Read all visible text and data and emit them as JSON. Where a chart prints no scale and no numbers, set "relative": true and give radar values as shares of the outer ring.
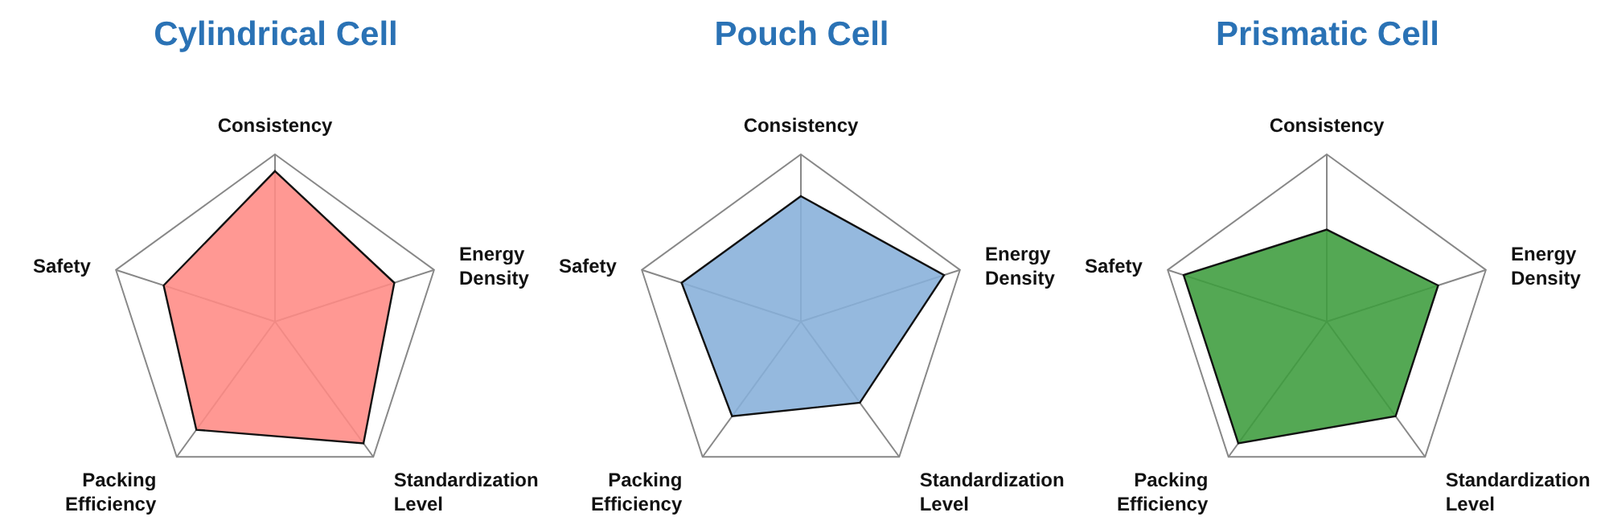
{
  "chart_data": [
    {
      "type": "radar",
      "title": "Cylindrical Cell",
      "categories": [
        "Consistency",
        "Energy Density",
        "Standardization Level",
        "Packing Efficiency",
        "Safety"
      ],
      "relative": true,
      "grid": true,
      "legend": false,
      "series": [
        {
          "color": "#ff8a84",
          "values": [
            0.9,
            0.75,
            0.9,
            0.8,
            0.7
          ]
        }
      ]
    },
    {
      "type": "radar",
      "title": "Pouch Cell",
      "categories": [
        "Consistency",
        "Energy Density",
        "Standardization Level",
        "Packing Efficiency",
        "Safety"
      ],
      "relative": true,
      "grid": true,
      "legend": false,
      "series": [
        {
          "color": "#86afd9",
          "values": [
            0.75,
            0.9,
            0.6,
            0.7,
            0.75
          ]
        }
      ]
    },
    {
      "type": "radar",
      "title": "Prismatic Cell",
      "categories": [
        "Consistency",
        "Energy Density",
        "Standardization Level",
        "Packing Efficiency",
        "Safety"
      ],
      "relative": true,
      "grid": true,
      "legend": false,
      "series": [
        {
          "color": "#3c9c3c",
          "values": [
            0.55,
            0.7,
            0.7,
            0.9,
            0.9
          ]
        }
      ]
    }
  ]
}
